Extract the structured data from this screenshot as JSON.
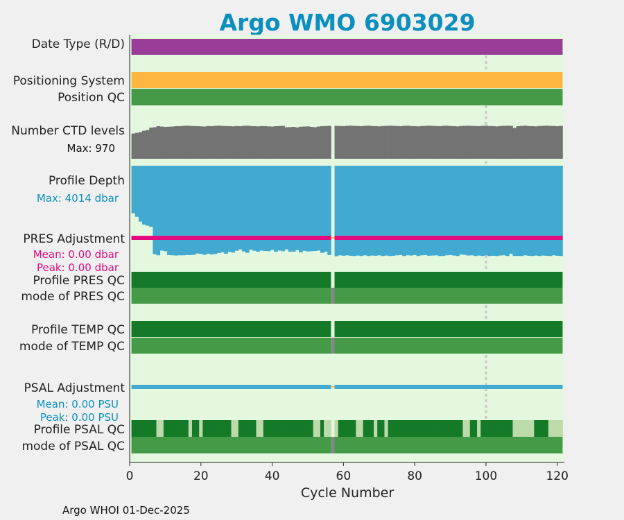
{
  "colors": {
    "background": "#f0f0f0",
    "plot_bg": "#e4f7df",
    "title": "#0b8fbd",
    "date_type": "#993d99",
    "positioning": "#fdb640",
    "qc_dark": "#157a28",
    "qc_mid": "#449a46",
    "qc_light": "#bddbaa",
    "ctd": "#737373",
    "profile_depth": "#42aad0",
    "pres_adj": "#e5097f",
    "psal_adj": "#42aad0",
    "missing": "#878787",
    "gap_marker": "#fdb640",
    "dotted_line": "#c8c8c8"
  },
  "chart_data": {
    "type": "bar",
    "title": "Argo WMO 6903029",
    "xlabel": "Cycle Number",
    "xlim": [
      0,
      122
    ],
    "xticks": [
      0,
      20,
      40,
      60,
      80,
      100,
      120
    ],
    "cycles_first": 1,
    "cycles_last": 121,
    "missing_cycle": 57,
    "dotted_line_cycle": 100,
    "rows": {
      "date_type": {
        "label": "Date Type (R/D)"
      },
      "positioning_system": {
        "label": "Positioning System"
      },
      "position_qc": {
        "label": "Position QC"
      },
      "ctd_levels": {
        "label": "Number CTD levels",
        "max_label": "Max: 970",
        "max": 970,
        "values": [
          720,
          740,
          760,
          800,
          820,
          890,
          900,
          930,
          920,
          910,
          915,
          920,
          930,
          930,
          940,
          945,
          940,
          935,
          930,
          925,
          920,
          935,
          930,
          940,
          945,
          940,
          935,
          930,
          925,
          935,
          930,
          940,
          945,
          935,
          930,
          925,
          935,
          930,
          925,
          920,
          930,
          935,
          940,
          900,
          905,
          910,
          895,
          915,
          920,
          925,
          910,
          900,
          920,
          930,
          935,
          940,
          0,
          940,
          935,
          930,
          940,
          945,
          940,
          935,
          930,
          940,
          945,
          935,
          930,
          925,
          935,
          940,
          945,
          940,
          935,
          930,
          940,
          945,
          935,
          930,
          925,
          935,
          940,
          945,
          940,
          935,
          930,
          940,
          945,
          935,
          930,
          925,
          935,
          940,
          945,
          940,
          935,
          930,
          940,
          945,
          935,
          930,
          925,
          935,
          940,
          945,
          940,
          880,
          930,
          940,
          945,
          935,
          930,
          925,
          935,
          940,
          945,
          940,
          935,
          930,
          940
        ]
      },
      "profile_depth": {
        "label": "Profile Depth",
        "max_label": "Max: 4014 dbar",
        "max": 4014,
        "values": [
          2100,
          2260,
          2470,
          2600,
          2650,
          2700,
          3910,
          3960,
          3750,
          3780,
          3950,
          3960,
          3970,
          3960,
          3960,
          3950,
          3950,
          3940,
          3880,
          3900,
          3940,
          3890,
          3920,
          3900,
          3860,
          3830,
          3890,
          3810,
          3840,
          3760,
          3700,
          3790,
          3850,
          3710,
          3760,
          3800,
          3750,
          3770,
          3780,
          3720,
          3800,
          3750,
          3780,
          3700,
          3800,
          3800,
          3730,
          3830,
          3760,
          3790,
          3780,
          3770,
          3750,
          3850,
          3800,
          3950,
          0,
          4000,
          3960,
          3980,
          3960,
          3980,
          3990,
          3970,
          3990,
          3960,
          3990,
          3970,
          3980,
          3960,
          3990,
          3970,
          3990,
          3980,
          3960,
          3950,
          3990,
          3960,
          3970,
          3950,
          3990,
          3960,
          3950,
          3980,
          3970,
          3960,
          3990,
          3990,
          3960,
          3950,
          3970,
          3990,
          3920,
          3940,
          3970,
          3960,
          3990,
          3970,
          3990,
          3960,
          3990,
          3980,
          3990,
          3970,
          3960,
          3990,
          3890,
          3990,
          3990,
          3990,
          3960,
          3980,
          3990,
          3970,
          3990,
          3970,
          3980,
          3990,
          3960,
          3980,
          3990
        ]
      },
      "pres_adjustment": {
        "label": "PRES Adjustment",
        "mean_label": "Mean: 0.00 dbar",
        "peak_label": "Peak: 0.00 dbar",
        "mean": 0.0,
        "peak": 0.0
      },
      "profile_pres_qc": {
        "label": "Profile PRES QC"
      },
      "mode_pres_qc": {
        "label": "mode of PRES QC"
      },
      "profile_temp_qc": {
        "label": "Profile TEMP QC"
      },
      "mode_temp_qc": {
        "label": "mode of TEMP QC"
      },
      "psal_adjustment": {
        "label": "PSAL Adjustment",
        "mean_label": "Mean: 0.00 PSU",
        "peak_label": "Peak: 0.00 PSU",
        "mean": 0.0,
        "peak": 0.0
      },
      "profile_psal_qc": {
        "label": "Profile PSAL QC",
        "light_cycles": [
          8,
          9,
          17,
          20,
          29,
          30,
          36,
          37,
          52,
          53,
          55,
          56,
          58,
          64,
          65,
          69,
          72,
          94,
          95,
          98,
          108,
          109,
          110,
          111,
          112,
          113,
          118,
          119,
          120,
          121
        ]
      },
      "mode_psal_qc": {
        "label": "mode of PSAL QC"
      }
    }
  },
  "footer": "Argo WHOI 01-Dec-2025"
}
